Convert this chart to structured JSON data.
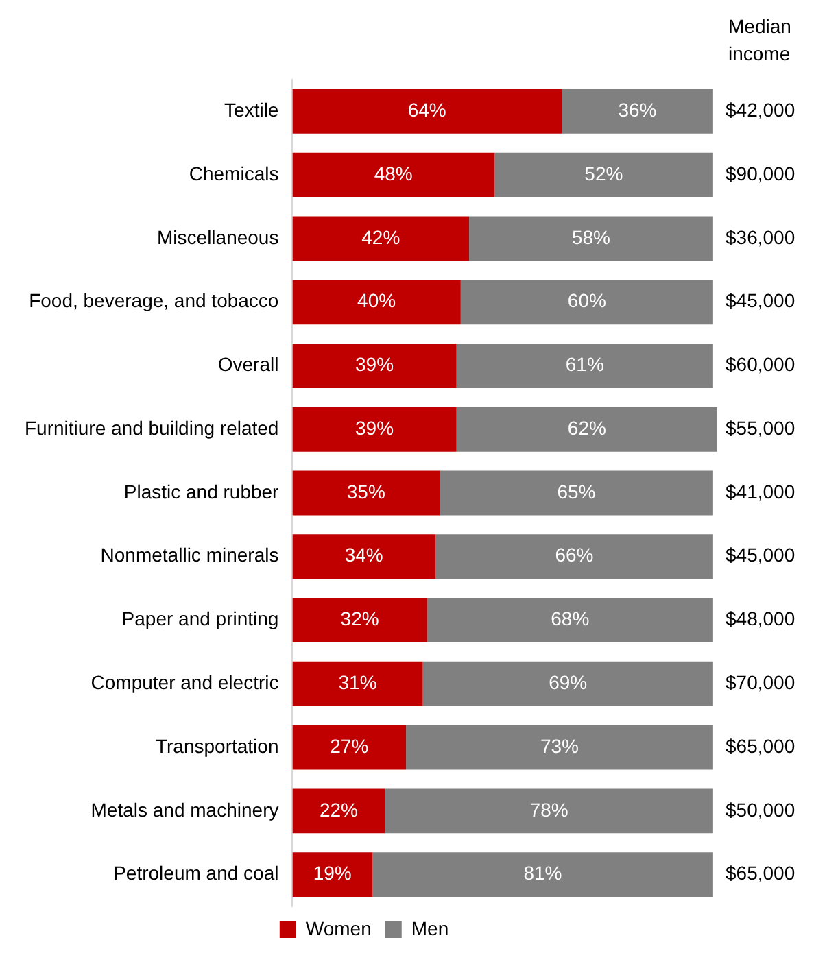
{
  "chart_data": {
    "type": "bar",
    "orientation": "horizontal",
    "stacked": true,
    "legend": "bottom",
    "grid": false,
    "categories": [
      "Textile",
      "Chemicals",
      "Miscellaneous",
      "Food, beverage, and tobacco",
      "Overall",
      "Furnitiure and building related",
      "Plastic and rubber",
      "Nonmetallic minerals",
      "Paper and printing",
      "Computer and electric",
      "Transportation",
      "Metals and machinery",
      "Petroleum and coal"
    ],
    "series": [
      {
        "name": "Women",
        "color": "#c00000",
        "values": [
          64,
          48,
          42,
          40,
          39,
          39,
          35,
          34,
          32,
          31,
          27,
          22,
          19
        ],
        "value_labels": [
          "64%",
          "48%",
          "42%",
          "40%",
          "39%",
          "39%",
          "35%",
          "34%",
          "32%",
          "31%",
          "27%",
          "22%",
          "19%"
        ]
      },
      {
        "name": "Men",
        "color": "#808080",
        "values": [
          36,
          52,
          58,
          60,
          61,
          62,
          65,
          66,
          68,
          69,
          73,
          78,
          81
        ],
        "value_labels": [
          "36%",
          "52%",
          "58%",
          "60%",
          "61%",
          "62%",
          "65%",
          "66%",
          "68%",
          "69%",
          "73%",
          "78%",
          "81%"
        ]
      }
    ],
    "annotations": [
      "Median income",
      "$42,000",
      "$90,000",
      "$36,000",
      "$45,000",
      "$60,000",
      "$55,000",
      "$41,000",
      "$45,000",
      "$48,000",
      "$70,000",
      "$65,000",
      "$50,000",
      "$65,000"
    ]
  }
}
